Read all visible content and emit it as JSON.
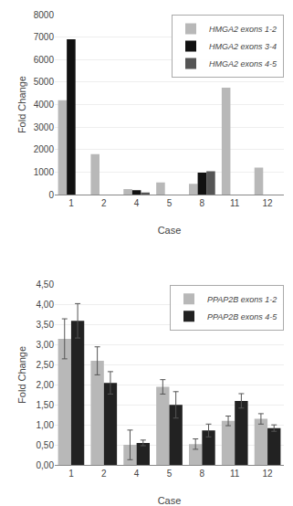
{
  "chart_data": [
    {
      "type": "bar",
      "categories": [
        "1",
        "2",
        "4",
        "5",
        "8",
        "11",
        "12"
      ],
      "series": [
        {
          "name": "HMGA2 exons 1-2",
          "color": "#b8b8b8",
          "values": [
            4200,
            1800,
            250,
            550,
            480,
            4750,
            1200
          ]
        },
        {
          "name": "HMGA2 exons 3-4",
          "color": "#111111",
          "values": [
            6900,
            0,
            200,
            0,
            980,
            0,
            0
          ]
        },
        {
          "name": "HMGA2 exons 4-5",
          "color": "#555555",
          "values": [
            0,
            0,
            100,
            0,
            1040,
            0,
            0
          ]
        }
      ],
      "xlabel": "Case",
      "ylabel": "Fold Change",
      "ylim": [
        0,
        8000
      ],
      "yticks": [
        0,
        1000,
        2000,
        3000,
        4000,
        5000,
        6000,
        7000,
        8000
      ],
      "grid": true,
      "legend": "upper right"
    },
    {
      "type": "bar",
      "categories": [
        "1",
        "2",
        "4",
        "5",
        "8",
        "11",
        "12"
      ],
      "series": [
        {
          "name": "PPAP2B exons 1-2",
          "color": "#b8b8b8",
          "values": [
            3.15,
            2.6,
            0.5,
            1.95,
            0.52,
            1.1,
            1.15
          ],
          "errors": [
            0.5,
            0.35,
            0.37,
            0.18,
            0.13,
            0.12,
            0.13
          ]
        },
        {
          "name": "PPAP2B exons 4-5",
          "color": "#222222",
          "values": [
            3.6,
            2.05,
            0.55,
            1.5,
            0.86,
            1.6,
            0.92
          ],
          "errors": [
            0.43,
            0.28,
            0.07,
            0.33,
            0.16,
            0.18,
            0.08
          ]
        }
      ],
      "xlabel": "Case",
      "ylabel": "Fold Change",
      "ylim": [
        0,
        4.5
      ],
      "yticks": [
        {
          "value": 0,
          "label": "0,00"
        },
        {
          "value": 0.5,
          "label": "0,50"
        },
        {
          "value": 1,
          "label": "1,00"
        },
        {
          "value": 1.5,
          "label": "1,50"
        },
        {
          "value": 2,
          "label": "2,00"
        },
        {
          "value": 2.5,
          "label": "2,50"
        },
        {
          "value": 3,
          "label": "3,00"
        },
        {
          "value": 3.5,
          "label": "3,50"
        },
        {
          "value": 4,
          "label": "4,00"
        },
        {
          "value": 4.5,
          "label": "4,50"
        }
      ],
      "grid": true,
      "legend": "upper right"
    }
  ]
}
